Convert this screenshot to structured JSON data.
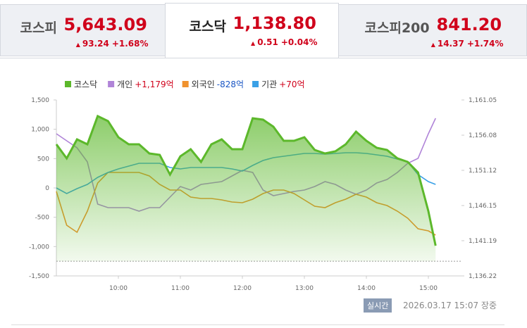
{
  "tabs": [
    {
      "name": "코스피",
      "value": "5,643.09",
      "arrow": "▲",
      "change": "93.24",
      "rate": "+1.68%"
    },
    {
      "name": "코스닥",
      "value": "1,138.80",
      "arrow": "▲",
      "change": "0.51",
      "rate": "+0.04%"
    },
    {
      "name": "코스피200",
      "value": "841.20",
      "arrow": "▲",
      "change": "14.37",
      "rate": "+1.74%"
    }
  ],
  "active_tab": 1,
  "chart_data": {
    "type": "line",
    "x": [
      "09:00",
      "09:10",
      "09:20",
      "09:30",
      "09:40",
      "09:50",
      "10:00",
      "10:10",
      "10:20",
      "10:30",
      "10:40",
      "10:50",
      "11:00",
      "11:10",
      "11:20",
      "11:30",
      "11:40",
      "11:50",
      "12:00",
      "12:10",
      "12:20",
      "12:30",
      "12:40",
      "12:50",
      "13:00",
      "13:10",
      "13:20",
      "13:30",
      "13:40",
      "13:50",
      "14:00",
      "14:10",
      "14:20",
      "14:30",
      "14:40",
      "14:50",
      "15:00",
      "15:07"
    ],
    "xlim": [
      "09:00",
      "15:30"
    ],
    "xticks": [
      "10:00",
      "11:00",
      "12:00",
      "13:00",
      "14:00",
      "15:00"
    ],
    "ylim": [
      -1500,
      1500
    ],
    "yticks": [
      {
        "value": -1500,
        "label": "-1,500"
      },
      {
        "value": -1000,
        "label": "-1,000"
      },
      -500,
      0,
      500,
      {
        "value": 1000,
        "label": "1,000"
      },
      {
        "value": 1500,
        "label": "1,500"
      }
    ],
    "y2lim": [
      1136.22,
      1161.05
    ],
    "y2ticks": [
      {
        "value": 1136.22,
        "label": "1,136.22"
      },
      {
        "value": 1141.19,
        "label": "1,141.19"
      },
      {
        "value": 1146.15,
        "label": "1,146.15"
      },
      {
        "value": 1151.12,
        "label": "1,151.12"
      },
      {
        "value": 1156.08,
        "label": "1,156.08"
      },
      {
        "value": 1161.05,
        "label": "1,161.05"
      }
    ],
    "reference_line": {
      "value": 1138.29,
      "axis": "y2"
    },
    "series": [
      {
        "name": "코스닥",
        "color": "#5cb82b",
        "axis": "y2",
        "area": true,
        "values": [
          1154.79,
          1152.81,
          1155.49,
          1154.79,
          1158.77,
          1158.07,
          1155.79,
          1154.79,
          1154.79,
          1153.5,
          1153.3,
          1150.52,
          1153.1,
          1154.1,
          1152.31,
          1154.79,
          1155.49,
          1154.1,
          1154.1,
          1158.47,
          1158.27,
          1157.28,
          1155.29,
          1155.29,
          1155.79,
          1154.0,
          1153.5,
          1153.8,
          1154.79,
          1156.58,
          1155.29,
          1154.3,
          1154.0,
          1152.81,
          1152.31,
          1150.82,
          1145.36,
          1140.49
        ]
      },
      {
        "name": "개인",
        "legend_value": "+1,179억",
        "legend_value_color": "#d0021b",
        "color": "#b084d8",
        "values": [
          924,
          804,
          684,
          444,
          -276,
          -336,
          -336,
          -336,
          -396,
          -336,
          -336,
          -156,
          24,
          -36,
          60,
          84,
          108,
          204,
          300,
          264,
          -36,
          -132,
          -96,
          -60,
          -36,
          24,
          108,
          60,
          -36,
          -108,
          -36,
          84,
          144,
          264,
          420,
          504,
          924,
          1188
        ]
      },
      {
        "name": "외국인",
        "legend_value": "-828억",
        "legend_value_color": "#1a56c4",
        "color": "#f0922e",
        "values": [
          -60,
          -636,
          -756,
          -396,
          84,
          264,
          264,
          264,
          264,
          204,
          60,
          -36,
          -36,
          -156,
          -180,
          -180,
          -204,
          -240,
          -252,
          -192,
          -96,
          -36,
          -36,
          -96,
          -204,
          -312,
          -336,
          -252,
          -192,
          -108,
          -156,
          -252,
          -300,
          -396,
          -516,
          -696,
          -732,
          -804
        ]
      },
      {
        "name": "기관",
        "legend_value": "+70억",
        "legend_value_color": "#d0021b",
        "color": "#3aa0e6",
        "values": [
          0,
          -96,
          -12,
          60,
          180,
          264,
          324,
          372,
          420,
          420,
          420,
          348,
          324,
          348,
          348,
          348,
          348,
          324,
          288,
          384,
          468,
          516,
          540,
          564,
          588,
          588,
          576,
          588,
          600,
          600,
          588,
          564,
          540,
          492,
          444,
          228,
          108,
          60
        ]
      }
    ]
  },
  "footer": {
    "badge": "실시간",
    "timestamp": "2026.03.17 15:07 장중"
  }
}
